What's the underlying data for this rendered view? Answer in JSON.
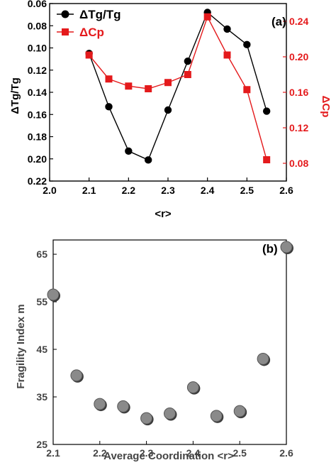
{
  "chart_data": [
    {
      "panel_label": "(a)",
      "type": "line",
      "xlabel": "<r>",
      "ylabel_left": "ΔTg/Tg",
      "ylabel_right": "ΔCp",
      "xlim": [
        2.0,
        2.6
      ],
      "xticks": [
        2.0,
        2.1,
        2.2,
        2.3,
        2.4,
        2.5,
        2.6
      ],
      "xtick_labels": [
        "2.0",
        "2.1",
        "2.2",
        "2.3",
        "2.4",
        "2.5",
        "2.6"
      ],
      "ylim_left": [
        0.06,
        0.22
      ],
      "y_left_inverted": true,
      "yticks_left": [
        0.06,
        0.08,
        0.1,
        0.12,
        0.14,
        0.16,
        0.18,
        0.2,
        0.22
      ],
      "ytick_labels_left": [
        "0.06",
        "0.08",
        "0.10",
        "0.12",
        "0.14",
        "0.16",
        "0.18",
        "0.20",
        "0.22"
      ],
      "ylim_right": [
        0.06,
        0.26
      ],
      "yticks_right": [
        0.08,
        0.12,
        0.16,
        0.2,
        0.24
      ],
      "ytick_labels_right": [
        "0.08",
        "0.12",
        "0.16",
        "0.20",
        "0.24"
      ],
      "legend_position": "top-left",
      "series": [
        {
          "name": "ΔTg/Tg",
          "axis": "left",
          "color": "#000000",
          "marker": "circle",
          "x": [
            2.1,
            2.15,
            2.2,
            2.25,
            2.3,
            2.35,
            2.4,
            2.45,
            2.5,
            2.55
          ],
          "y": [
            0.105,
            0.153,
            0.193,
            0.201,
            0.156,
            0.112,
            0.068,
            0.083,
            0.097,
            0.157
          ]
        },
        {
          "name": "ΔCp",
          "axis": "right",
          "color": "#e41a1c",
          "marker": "square",
          "x": [
            2.1,
            2.15,
            2.2,
            2.25,
            2.3,
            2.35,
            2.4,
            2.45,
            2.5,
            2.55
          ],
          "y": [
            0.202,
            0.175,
            0.167,
            0.164,
            0.171,
            0.18,
            0.245,
            0.202,
            0.163,
            0.084
          ]
        }
      ]
    },
    {
      "panel_label": "(b)",
      "type": "scatter",
      "xlabel": "Average Coordination <r>",
      "ylabel": "Fragility Index m",
      "xlim": [
        2.1,
        2.6
      ],
      "xticks": [
        2.1,
        2.2,
        2.3,
        2.4,
        2.5,
        2.6
      ],
      "xtick_labels": [
        "2.1",
        "2.2",
        "2.3",
        "2.4",
        "2.5",
        "2.6"
      ],
      "ylim": [
        25,
        68
      ],
      "yticks": [
        25,
        35,
        45,
        55,
        65
      ],
      "ytick_labels": [
        "25",
        "35",
        "45",
        "55",
        "65"
      ],
      "marker_color": "#8a8a8a",
      "series": [
        {
          "x": [
            2.1,
            2.15,
            2.2,
            2.25,
            2.3,
            2.35,
            2.4,
            2.45,
            2.5,
            2.55,
            2.6
          ],
          "y": [
            56.5,
            39.5,
            33.5,
            33.0,
            30.5,
            31.5,
            37.0,
            31.0,
            32.0,
            43.0,
            66.5
          ]
        }
      ]
    }
  ]
}
